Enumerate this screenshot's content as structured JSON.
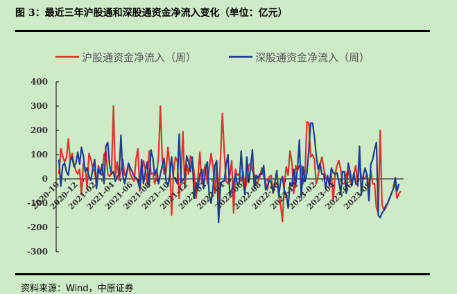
{
  "title": "图 3：最近三年沪股通和深股通资金净流入变化（单位：亿元）",
  "source": "资料来源：Wind，中原证券",
  "chart_data": {
    "type": "line",
    "legend_position": "top",
    "ylim": [
      -300,
      400
    ],
    "yticks": [
      -300,
      -200,
      -100,
      0,
      100,
      200,
      300,
      400
    ],
    "xtick_labels": [
      "2020-10",
      "2020-12",
      "2021-02",
      "2021-04",
      "2021-06",
      "2021-08",
      "2021-10",
      "2021-12",
      "2022-02",
      "2022-04",
      "2022-06",
      "2022-08",
      "2022-10",
      "2022-12",
      "2023-02",
      "2023-04",
      "2023-06",
      "2023-08"
    ],
    "series": [
      {
        "name": "沪股通资金净流入（周）",
        "color": "#e0322d",
        "values": [
          20,
          125,
          95,
          70,
          85,
          165,
          75,
          105,
          60,
          35,
          20,
          40,
          -65,
          65,
          45,
          -40,
          105,
          80,
          45,
          30,
          -20,
          55,
          25,
          15,
          100,
          115,
          20,
          10,
          25,
          300,
          10,
          70,
          -5,
          35,
          80,
          15,
          25,
          60,
          20,
          5,
          -10,
          80,
          125,
          -50,
          25,
          75,
          40,
          -20,
          115,
          20,
          25,
          -20,
          15,
          95,
          300,
          75,
          20,
          25,
          130,
          55,
          -150,
          30,
          90,
          75,
          -80,
          15,
          195,
          -40,
          60,
          20,
          95,
          80,
          25,
          -80,
          10,
          110,
          -20,
          30,
          60,
          -20,
          40,
          105,
          55,
          -60,
          65,
          -80,
          90,
          270,
          110,
          -10,
          -20,
          20,
          75,
          -140,
          40,
          15,
          20,
          -10,
          30,
          -45,
          -10,
          55,
          65,
          35,
          20,
          -20,
          -10,
          10,
          45,
          10,
          -15,
          -45,
          10,
          15,
          -60,
          -25,
          -20,
          -45,
          -105,
          -175,
          -20,
          50,
          15,
          115,
          70,
          -60,
          55,
          35,
          55,
          55,
          -20,
          25,
          235,
          230,
          90,
          100,
          80,
          -20,
          15,
          55,
          90,
          45,
          5,
          -5,
          -5,
          20,
          -90,
          20,
          55,
          75,
          40,
          -20,
          -20,
          20,
          35,
          -10,
          -20,
          20,
          55,
          -30,
          70,
          5,
          5,
          5,
          20,
          -30,
          35,
          -20,
          -20,
          -120,
          -140,
          200,
          -105,
          -130,
          -120,
          -100,
          -80,
          -60,
          -40,
          -20,
          -80,
          -60,
          -50
        ]
      },
      {
        "name": "深股通资金净流入（周）",
        "color": "#1c3d8e",
        "values": [
          80,
          -30,
          55,
          65,
          30,
          15,
          75,
          90,
          50,
          65,
          110,
          60,
          130,
          95,
          30,
          45,
          10,
          -5,
          40,
          80,
          -40,
          40,
          20,
          60,
          -20,
          135,
          150,
          55,
          20,
          30,
          -10,
          10,
          15,
          180,
          15,
          -20,
          20,
          65,
          45,
          30,
          10,
          5,
          -10,
          -40,
          80,
          -20,
          30,
          70,
          -30,
          120,
          85,
          15,
          40,
          -20,
          20,
          55,
          85,
          -5,
          -30,
          15,
          90,
          5,
          5,
          -20,
          185,
          -15,
          -5,
          5,
          95,
          70,
          30,
          90,
          -80,
          -15,
          -40,
          20,
          40,
          -40,
          40,
          70,
          -65,
          -100,
          -40,
          55,
          75,
          -180,
          -20,
          -10,
          -10,
          60,
          100,
          -70,
          -45,
          -20,
          20,
          -25,
          -20,
          115,
          -10,
          -65,
          90,
          -15,
          45,
          120,
          -40,
          15,
          5,
          20,
          20,
          55,
          -45,
          -30,
          -5,
          -15,
          -55,
          -10,
          35,
          -70,
          -10,
          10,
          -50,
          -60,
          -120,
          -15,
          -30,
          40,
          -25,
          45,
          160,
          -75,
          50,
          -10,
          25,
          120,
          230,
          230,
          175,
          95,
          40,
          65,
          20,
          20,
          -40,
          15,
          -30,
          45,
          25,
          20,
          25,
          -10,
          -60,
          30,
          30,
          -60,
          65,
          30,
          -25,
          25,
          -20,
          -25,
          135,
          -65,
          15,
          45,
          15,
          -90,
          60,
          80,
          120,
          150,
          -150,
          -160,
          -140,
          -130,
          -110,
          -100,
          -80,
          -60,
          -40,
          5,
          -50,
          -20
        ]
      }
    ]
  }
}
